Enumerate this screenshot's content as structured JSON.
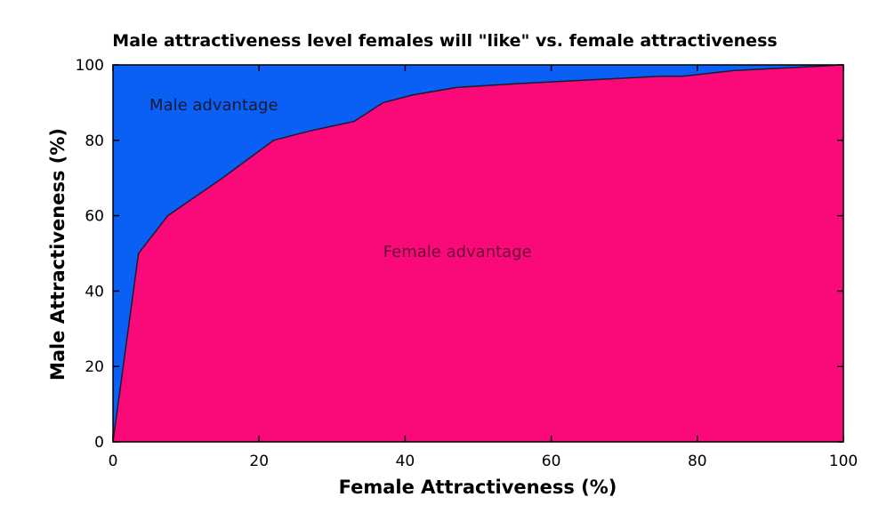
{
  "chart_data": {
    "type": "area",
    "title": "Male attractiveness level females will \"like\" vs. female attractiveness",
    "xlabel": "Female Attractiveness (%)",
    "ylabel": "Male Attractiveness (%)",
    "xlim": [
      0,
      100
    ],
    "ylim": [
      0,
      100
    ],
    "x_ticks": [
      "0",
      "20",
      "40",
      "60",
      "80",
      "100"
    ],
    "y_ticks": [
      "0",
      "20",
      "40",
      "60",
      "80",
      "100"
    ],
    "grid": false,
    "x": [
      0,
      3.5,
      7.5,
      15,
      22,
      27,
      33,
      37,
      41,
      47,
      55,
      65,
      75,
      78,
      85,
      100
    ],
    "y": [
      0,
      50,
      60,
      70,
      80,
      82.5,
      85,
      90,
      92,
      94,
      95,
      96,
      97,
      97,
      98.5,
      100
    ],
    "regions": {
      "upper": {
        "label": "Male advantage",
        "color": "#0a5ff5",
        "label_color": "#1a1a2e",
        "label_at": [
          5,
          88
        ]
      },
      "lower": {
        "label": "Female advantage",
        "color": "#fa0a78",
        "label_color": "#6b0a3a",
        "label_at": [
          37,
          49
        ]
      }
    },
    "line_color": "#1a1a2e"
  }
}
